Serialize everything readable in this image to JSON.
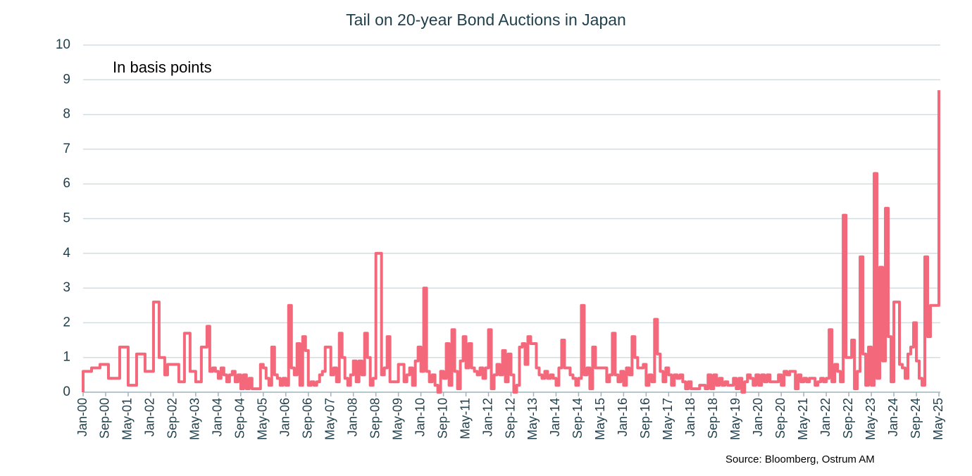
{
  "chart_data": {
    "type": "line",
    "step": true,
    "title": "Tail on 20-year Bond Auctions in Japan",
    "annotation": "In basis points",
    "source": "Source: Bloomberg,  Ostrum  AM",
    "categories": [
      "Jan-00",
      null,
      null,
      null,
      null,
      null,
      null,
      null,
      "Sep-00",
      null,
      null,
      null,
      null,
      null,
      null,
      null,
      "May-01",
      null,
      null,
      null,
      null,
      null,
      null,
      null,
      "Jan-02",
      null,
      null,
      null,
      null,
      null,
      null,
      null,
      "Sep-02",
      null,
      null,
      null,
      null,
      null,
      null,
      null,
      "May-03",
      null,
      null,
      null,
      null,
      null,
      null,
      null,
      "Jan-04",
      null,
      null,
      null,
      null,
      null,
      null,
      null,
      "Sep-04",
      null,
      null,
      null,
      null,
      null,
      null,
      null,
      "May-05",
      null,
      null,
      null,
      null,
      null,
      null,
      null,
      "Jan-06",
      null,
      null,
      null,
      null,
      null,
      null,
      null,
      "Sep-06",
      null,
      null,
      null,
      null,
      null,
      null,
      null,
      "May-07",
      null,
      null,
      null,
      null,
      null,
      null,
      null,
      "Jan-08",
      null,
      null,
      null,
      null,
      null,
      null,
      null,
      "Sep-08",
      null,
      null,
      null,
      null,
      null,
      null,
      null,
      "May-09",
      null,
      null,
      null,
      null,
      null,
      null,
      null,
      "Jan-10",
      null,
      null,
      null,
      null,
      null,
      null,
      null,
      "Sep-10",
      null,
      null,
      null,
      null,
      null,
      null,
      null,
      "May-11",
      null,
      null,
      null,
      null,
      null,
      null,
      null,
      "Jan-12",
      null,
      null,
      null,
      null,
      null,
      null,
      null,
      "Sep-12",
      null,
      null,
      null,
      null,
      null,
      null,
      null,
      "May-13",
      null,
      null,
      null,
      null,
      null,
      null,
      null,
      "Jan-14",
      null,
      null,
      null,
      null,
      null,
      null,
      null,
      "Sep-14",
      null,
      null,
      null,
      null,
      null,
      null,
      null,
      "May-15",
      null,
      null,
      null,
      null,
      null,
      null,
      null,
      "Jan-16",
      null,
      null,
      null,
      null,
      null,
      null,
      null,
      "Sep-16",
      null,
      null,
      null,
      null,
      null,
      null,
      null,
      "May-17",
      null,
      null,
      null,
      null,
      null,
      null,
      null,
      "Jan-18",
      null,
      null,
      null,
      null,
      null,
      null,
      null,
      "Sep-18",
      null,
      null,
      null,
      null,
      null,
      null,
      null,
      "May-19",
      null,
      null,
      null,
      null,
      null,
      null,
      null,
      "Jan-20",
      null,
      null,
      null,
      null,
      null,
      null,
      null,
      "Sep-20",
      null,
      null,
      null,
      null,
      null,
      null,
      null,
      "May-21",
      null,
      null,
      null,
      null,
      null,
      null,
      null,
      "Jan-22",
      null,
      null,
      null,
      null,
      null,
      null,
      null,
      "Sep-22",
      null,
      null,
      null,
      null,
      null,
      null,
      null,
      "May-23",
      null,
      null,
      null,
      null,
      null,
      null,
      null,
      "Jan-24",
      null,
      null,
      null,
      null,
      null,
      null,
      null,
      "Sep-24",
      null,
      null,
      null,
      null,
      null,
      null,
      null,
      "May-25"
    ],
    "series": [
      {
        "name": "Tail",
        "color": "#f4687c",
        "values": [
          0.6,
          0.6,
          0.6,
          0.7,
          0.7,
          0.7,
          0.8,
          0.8,
          0.8,
          0.4,
          0.4,
          0.4,
          0.4,
          1.3,
          1.3,
          1.3,
          0.2,
          0.2,
          0.2,
          1.1,
          1.1,
          1.1,
          0.6,
          0.6,
          0.6,
          2.6,
          2.6,
          1.0,
          1.0,
          0.5,
          0.8,
          0.8,
          0.8,
          0.8,
          0.3,
          0.3,
          1.7,
          1.7,
          0.6,
          0.6,
          0.3,
          0.3,
          1.3,
          1.3,
          1.9,
          0.6,
          0.7,
          0.6,
          0.4,
          0.7,
          0.5,
          0.3,
          0.5,
          0.6,
          0.3,
          0.5,
          0.1,
          0.5,
          0.1,
          0.4,
          0.1,
          0.1,
          0.1,
          0.8,
          0.7,
          0.4,
          0.2,
          1.3,
          0.5,
          0.4,
          0.2,
          0.4,
          0.2,
          2.5,
          0.7,
          0.5,
          1.4,
          0.2,
          1.6,
          1.2,
          0.2,
          0.3,
          0.2,
          0.3,
          0.5,
          0.6,
          1.3,
          1.3,
          0.5,
          0.7,
          0.3,
          1.7,
          1.0,
          0.4,
          0.2,
          0.5,
          0.9,
          0.3,
          0.9,
          0.5,
          1.7,
          1.0,
          0.2,
          0.4,
          4.0,
          4.0,
          0.5,
          0.7,
          1.6,
          0.3,
          0.3,
          0.3,
          0.8,
          0.8,
          0.3,
          0.5,
          0.7,
          0.2,
          0.9,
          1.3,
          0.6,
          3.0,
          0.6,
          0.3,
          0.5,
          0.2,
          0.0,
          0.6,
          0.4,
          1.4,
          0.2,
          1.8,
          0.6,
          0.1,
          0.9,
          1.6,
          0.7,
          1.4,
          0.7,
          0.6,
          0.5,
          0.7,
          0.4,
          0.7,
          1.8,
          0.1,
          0.5,
          0.8,
          0.5,
          1.2,
          0.3,
          1.1,
          0.5,
          0.0,
          0.2,
          1.3,
          1.4,
          0.8,
          1.6,
          1.4,
          1.4,
          0.7,
          0.5,
          0.4,
          0.6,
          0.4,
          0.5,
          0.4,
          0.2,
          0.7,
          1.5,
          0.7,
          0.7,
          0.5,
          0.4,
          0.2,
          0.4,
          2.5,
          0.5,
          0.7,
          0.1,
          1.3,
          0.7,
          0.7,
          0.7,
          0.7,
          0.3,
          0.5,
          1.7,
          0.5,
          0.3,
          0.6,
          0.2,
          0.7,
          0.5,
          1.6,
          1.0,
          0.7,
          0.7,
          0.8,
          0.2,
          0.5,
          0.3,
          2.1,
          1.1,
          0.6,
          0.3,
          0.7,
          0.5,
          0.2,
          0.5,
          0.4,
          0.5,
          0.3,
          0.1,
          0.3,
          0.1,
          0.1,
          0.1,
          0.2,
          0.2,
          0.1,
          0.5,
          0.1,
          0.5,
          0.2,
          0.4,
          0.2,
          0.3,
          0.2,
          0.2,
          0.4,
          0.1,
          0.4,
          0.0,
          0.3,
          0.5,
          0.4,
          0.2,
          0.5,
          0.2,
          0.5,
          0.3,
          0.5,
          0.3,
          0.3,
          0.3,
          0.5,
          0.2,
          0.6,
          0.5,
          0.6,
          0.6,
          0.1,
          0.5,
          0.3,
          0.4,
          0.3,
          0.4,
          0.4,
          0.2,
          0.3,
          0.4,
          0.3,
          0.4,
          1.8,
          0.3,
          0.8,
          0.6,
          0.3,
          5.1,
          1.0,
          1.0,
          1.5,
          0.1,
          0.6,
          3.9,
          1.1,
          0.2,
          1.3,
          0.2,
          6.3,
          0.4,
          3.6,
          0.9,
          5.3,
          1.6,
          0.3,
          2.6,
          2.6,
          0.8,
          0.7,
          0.4,
          1.1,
          1.3,
          2.0,
          0.9,
          0.4,
          0.2,
          3.9,
          1.6,
          2.5,
          2.5,
          2.5,
          8.7
        ]
      }
    ],
    "ylim": [
      0,
      10
    ],
    "yticks": [
      0,
      1,
      2,
      3,
      4,
      5,
      6,
      7,
      8,
      9,
      10
    ],
    "grid": true
  }
}
